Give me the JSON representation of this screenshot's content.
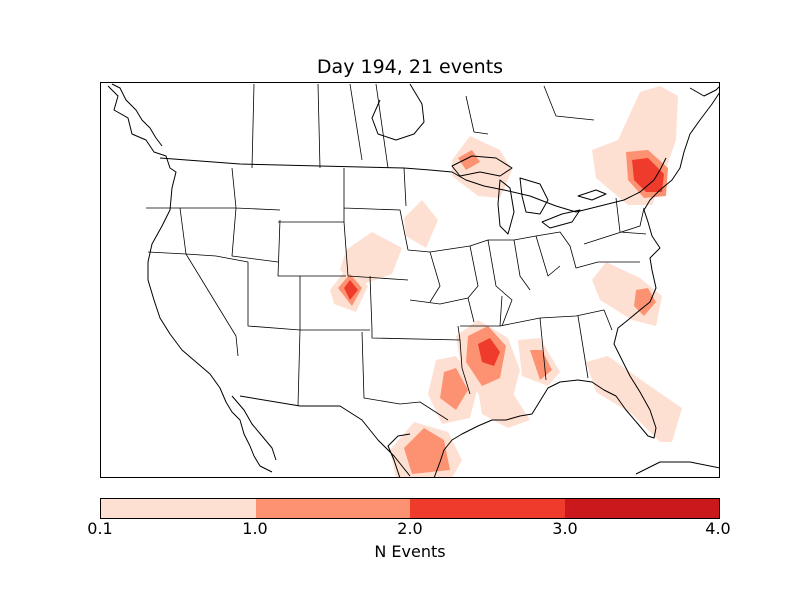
{
  "title": "Day 194, 21 events",
  "colorbar": {
    "label": "N Events",
    "ticks": [
      "0.1",
      "1.0",
      "2.0",
      "3.0",
      "4.0"
    ],
    "colors": [
      "#fee0d2",
      "#fc9272",
      "#ef3b2c",
      "#cb181d"
    ],
    "levels": [
      0.1,
      1.0,
      2.0,
      3.0,
      4.0
    ]
  },
  "colors": {
    "level1": "#fee0d2",
    "level2": "#fc9272",
    "level3": "#ef3b2c",
    "level4": "#cb181d"
  }
}
